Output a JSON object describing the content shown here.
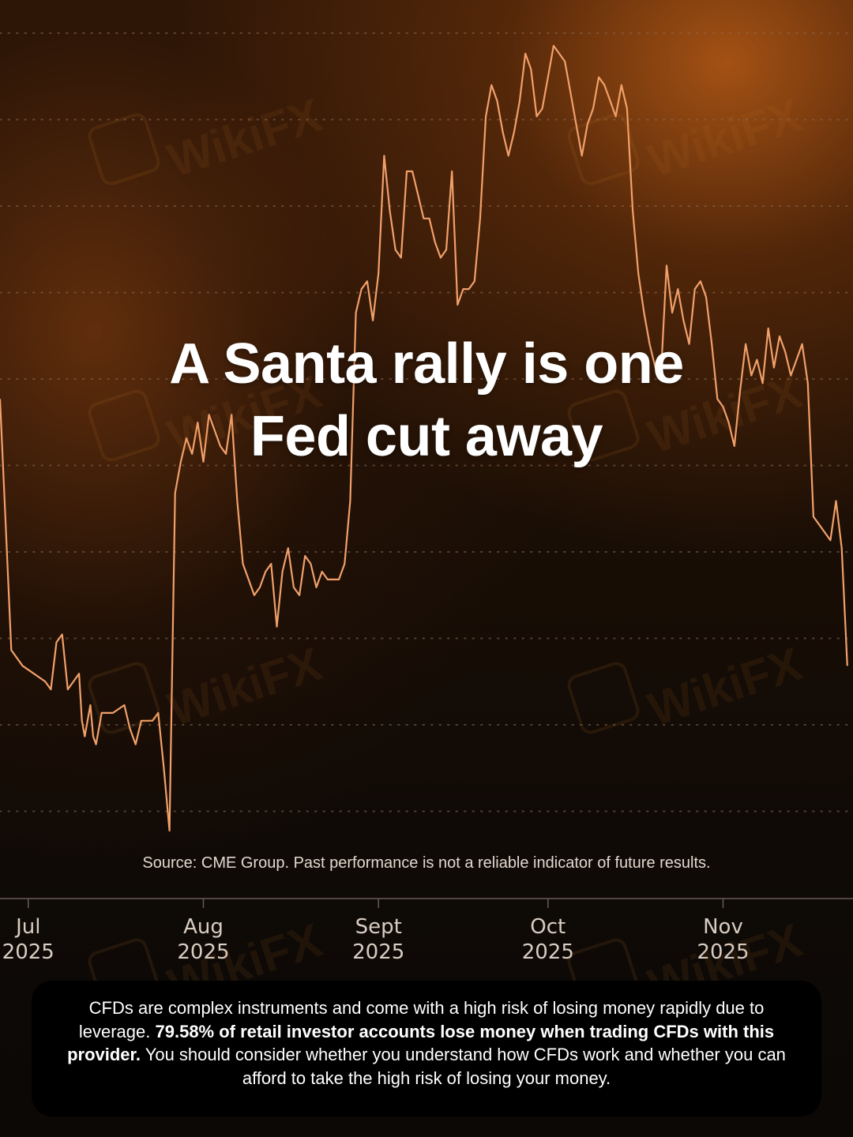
{
  "headline": {
    "line1": "A Santa rally is one",
    "line2": "Fed cut away"
  },
  "source_note": "Source: CME Group. Past performance is not a reliable indicator of future results.",
  "disclaimer": {
    "part1": "CFDs are complex instruments and come with a high risk of losing money rapidly due to leverage. ",
    "bold": "79.58% of retail investor accounts lose money when trading CFDs with this provider.",
    "part2": " You should consider whether you understand how CFDs work and whether you can afford to take the high risk of losing your money."
  },
  "watermark": "WikiFX",
  "colors": {
    "line": "#f2a06a",
    "accent_glow": "#b95c16",
    "grid_dots": "#8a6a55",
    "axis_text": "#d9cdc2"
  },
  "chart_data": {
    "type": "line",
    "title": "",
    "xlabel": "",
    "ylabel": "",
    "grid": "dotted horizontal",
    "x_ticks": [
      {
        "month": "Jul",
        "year": "2025",
        "day": 0
      },
      {
        "month": "Aug",
        "year": "2025",
        "day": 31
      },
      {
        "month": "Sept",
        "year": "2025",
        "day": 62
      },
      {
        "month": "Oct",
        "year": "2025",
        "day": 92
      },
      {
        "month": "Nov",
        "year": "2025",
        "day": 123
      }
    ],
    "x_range": [
      -5,
      146
    ],
    "y_range": [
      0,
      100
    ],
    "series": [
      {
        "name": "",
        "points": [
          [
            -5,
            55
          ],
          [
            -4,
            39
          ],
          [
            -3,
            23
          ],
          [
            -1,
            21
          ],
          [
            1,
            20
          ],
          [
            3,
            19
          ],
          [
            4,
            18
          ],
          [
            5,
            24
          ],
          [
            6,
            25
          ],
          [
            7,
            18
          ],
          [
            8,
            19
          ],
          [
            9,
            20
          ],
          [
            9.5,
            14
          ],
          [
            10,
            12
          ],
          [
            11,
            16
          ],
          [
            11.5,
            12
          ],
          [
            12,
            11
          ],
          [
            13,
            15
          ],
          [
            15,
            15
          ],
          [
            17,
            16
          ],
          [
            18,
            13
          ],
          [
            19,
            11
          ],
          [
            20,
            14
          ],
          [
            22,
            14
          ],
          [
            23,
            15
          ],
          [
            24,
            8
          ],
          [
            25,
            0
          ],
          [
            26,
            43
          ],
          [
            27,
            47
          ],
          [
            28,
            50
          ],
          [
            29,
            48
          ],
          [
            30,
            52
          ],
          [
            31,
            47
          ],
          [
            32,
            53
          ],
          [
            33,
            51
          ],
          [
            34,
            49
          ],
          [
            35,
            48
          ],
          [
            36,
            53
          ],
          [
            37,
            42
          ],
          [
            38,
            34
          ],
          [
            39,
            32
          ],
          [
            40,
            30
          ],
          [
            41,
            31
          ],
          [
            42,
            33
          ],
          [
            43,
            34
          ],
          [
            44,
            26
          ],
          [
            45,
            33
          ],
          [
            46,
            36
          ],
          [
            47,
            31
          ],
          [
            48,
            30
          ],
          [
            49,
            35
          ],
          [
            50,
            34
          ],
          [
            51,
            31
          ],
          [
            52,
            33
          ],
          [
            53,
            32
          ],
          [
            54,
            32
          ],
          [
            55,
            32
          ],
          [
            56,
            34
          ],
          [
            57,
            42
          ],
          [
            58,
            66
          ],
          [
            59,
            69
          ],
          [
            60,
            70
          ],
          [
            61,
            65
          ],
          [
            62,
            71
          ],
          [
            63,
            86
          ],
          [
            64,
            79
          ],
          [
            65,
            74
          ],
          [
            66,
            73
          ],
          [
            67,
            84
          ],
          [
            68,
            84
          ],
          [
            69,
            81
          ],
          [
            70,
            78
          ],
          [
            71,
            78
          ],
          [
            72,
            75
          ],
          [
            73,
            73
          ],
          [
            74,
            74
          ],
          [
            75,
            84
          ],
          [
            76,
            67
          ],
          [
            77,
            69
          ],
          [
            78,
            69
          ],
          [
            79,
            70
          ],
          [
            80,
            78
          ],
          [
            81,
            91
          ],
          [
            82,
            95
          ],
          [
            83,
            93
          ],
          [
            84,
            89
          ],
          [
            85,
            86
          ],
          [
            86,
            89
          ],
          [
            87,
            93
          ],
          [
            88,
            99
          ],
          [
            89,
            97
          ],
          [
            90,
            91
          ],
          [
            91,
            92
          ],
          [
            92,
            96
          ],
          [
            93,
            100
          ],
          [
            94,
            99
          ],
          [
            95,
            98
          ],
          [
            96,
            94
          ],
          [
            97,
            90
          ],
          [
            98,
            86
          ],
          [
            99,
            90
          ],
          [
            100,
            92
          ],
          [
            101,
            96
          ],
          [
            102,
            95
          ],
          [
            103,
            93
          ],
          [
            104,
            91
          ],
          [
            105,
            95
          ],
          [
            106,
            92
          ],
          [
            107,
            79
          ],
          [
            108,
            71
          ],
          [
            109,
            66
          ],
          [
            110,
            62
          ],
          [
            111,
            59
          ],
          [
            112,
            58
          ],
          [
            113,
            72
          ],
          [
            114,
            66
          ],
          [
            115,
            69
          ],
          [
            116,
            65
          ],
          [
            117,
            62
          ],
          [
            118,
            69
          ],
          [
            119,
            70
          ],
          [
            120,
            68
          ],
          [
            121,
            62
          ],
          [
            122,
            55
          ],
          [
            123,
            54
          ],
          [
            124,
            52
          ],
          [
            125,
            49
          ],
          [
            126,
            56
          ],
          [
            127,
            62
          ],
          [
            128,
            58
          ],
          [
            129,
            60
          ],
          [
            130,
            57
          ],
          [
            131,
            64
          ],
          [
            132,
            59
          ],
          [
            133,
            63
          ],
          [
            134,
            61
          ],
          [
            135,
            58
          ],
          [
            136,
            60
          ],
          [
            137,
            62
          ],
          [
            138,
            57
          ],
          [
            139,
            40
          ],
          [
            140,
            39
          ],
          [
            141,
            38
          ],
          [
            142,
            37
          ],
          [
            143,
            42
          ],
          [
            144,
            36
          ],
          [
            145,
            21
          ]
        ]
      }
    ]
  }
}
